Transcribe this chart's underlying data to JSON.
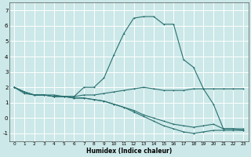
{
  "xlabel": "Humidex (Indice chaleur)",
  "xlim": [
    -0.5,
    23.5
  ],
  "ylim": [
    -1.5,
    7.5
  ],
  "yticks": [
    -1,
    0,
    1,
    2,
    3,
    4,
    5,
    6,
    7
  ],
  "xticks": [
    0,
    1,
    2,
    3,
    4,
    5,
    6,
    7,
    8,
    9,
    10,
    11,
    12,
    13,
    14,
    15,
    16,
    17,
    18,
    19,
    20,
    21,
    22,
    23
  ],
  "bg_color": "#cce8e8",
  "grid_color": "#ffffff",
  "line_color": "#2a7070",
  "line1_x": [
    0,
    1,
    2,
    3,
    4,
    5,
    6,
    7,
    8,
    9,
    10,
    11,
    12,
    13,
    14,
    15,
    16,
    17,
    18,
    19,
    20,
    21,
    22,
    23
  ],
  "line1_y": [
    2.0,
    1.6,
    1.5,
    1.5,
    1.5,
    1.4,
    1.4,
    2.0,
    2.0,
    2.6,
    4.1,
    5.5,
    6.5,
    6.6,
    6.6,
    6.1,
    6.1,
    3.8,
    3.3,
    1.9,
    0.9,
    -0.7,
    -0.7,
    -0.7
  ],
  "line2_x": [
    0,
    1,
    2,
    3,
    4,
    5,
    6,
    7,
    8,
    9,
    10,
    11,
    12,
    13,
    14,
    15,
    16,
    17,
    18,
    19,
    20,
    21,
    22,
    23
  ],
  "line2_y": [
    2.0,
    1.7,
    1.5,
    1.5,
    1.4,
    1.4,
    1.4,
    1.5,
    1.5,
    1.6,
    1.7,
    1.8,
    1.9,
    2.0,
    1.9,
    1.8,
    1.8,
    1.8,
    1.9,
    1.9,
    1.9,
    1.9,
    1.9,
    1.9
  ],
  "line3_x": [
    0,
    1,
    2,
    3,
    4,
    5,
    6,
    7,
    8,
    9,
    10,
    11,
    12,
    13,
    14,
    15,
    16,
    17,
    18,
    19,
    20,
    21,
    22,
    23
  ],
  "line3_y": [
    2.0,
    1.7,
    1.5,
    1.5,
    1.4,
    1.4,
    1.3,
    1.3,
    1.2,
    1.1,
    0.9,
    0.7,
    0.5,
    0.2,
    0.0,
    -0.2,
    -0.4,
    -0.5,
    -0.6,
    -0.5,
    -0.4,
    -0.7,
    -0.7,
    -0.8
  ],
  "line4_x": [
    0,
    1,
    2,
    3,
    4,
    5,
    6,
    7,
    8,
    9,
    10,
    11,
    12,
    13,
    14,
    15,
    16,
    17,
    18,
    19,
    20,
    21,
    22,
    23
  ],
  "line4_y": [
    2.0,
    1.7,
    1.5,
    1.5,
    1.4,
    1.4,
    1.3,
    1.3,
    1.2,
    1.1,
    0.9,
    0.7,
    0.4,
    0.1,
    -0.2,
    -0.5,
    -0.7,
    -0.9,
    -1.0,
    -0.9,
    -0.8,
    -0.8,
    -0.8,
    -0.8
  ]
}
